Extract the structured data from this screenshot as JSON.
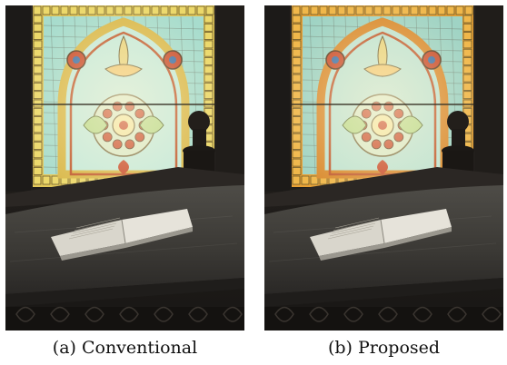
{
  "figure": {
    "panels": [
      {
        "caption": "(a) Conventional"
      },
      {
        "caption": "(b) Proposed"
      }
    ]
  }
}
